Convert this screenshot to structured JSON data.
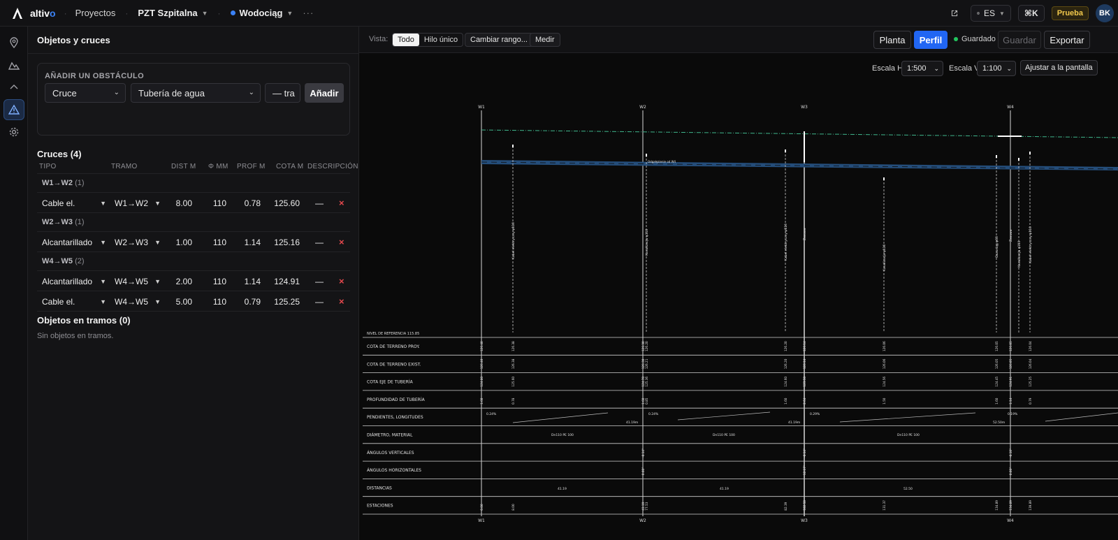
{
  "app": {
    "brand_main": "altiv",
    "brand_accent": "o",
    "nav_projects": "Proyectos",
    "project": "PZT Szpitalna",
    "network": "Wodociąg",
    "more": "···",
    "lang": "ES",
    "shortcut": "⌘K",
    "plan_badge": "Prueba",
    "avatar_initials": "BK"
  },
  "rail": [
    "map-pin-icon",
    "terrain-icon",
    "chevron-up-icon",
    "warning-icon",
    "gear-icon"
  ],
  "panel": {
    "title": "Objetos y cruces",
    "add": {
      "title": "AÑADIR UN OBSTÁCULO",
      "type_value": "Cruce",
      "object_value": "Tubería de agua",
      "segment_value": "— tra",
      "add_label": "Añadir"
    },
    "crossings_title": "Cruces (4)",
    "columns": [
      "TIPO",
      "TRAMO",
      "DIST M",
      "Φ MM",
      "PROF M",
      "COTA M",
      "DESCRIPCIÓN"
    ],
    "groups": [
      {
        "name": "W1→W2",
        "count": "(1)",
        "rows": [
          {
            "type": "Cable el.",
            "segment": "W1→W2",
            "dist": "8.00",
            "dia": "110",
            "depth": "0.78",
            "elev": "125.60",
            "desc": "—"
          }
        ]
      },
      {
        "name": "W2→W3",
        "count": "(1)",
        "rows": [
          {
            "type": "Alcantarillado",
            "segment": "W2→W3",
            "dist": "1.00",
            "dia": "110",
            "depth": "1.14",
            "elev": "125.16",
            "desc": "—"
          }
        ]
      },
      {
        "name": "W4→W5",
        "count": "(2)",
        "rows": [
          {
            "type": "Alcantarillado",
            "segment": "W4→W5",
            "dist": "2.00",
            "dia": "110",
            "depth": "1.14",
            "elev": "124.91",
            "desc": "—"
          },
          {
            "type": "Cable el.",
            "segment": "W4→W5",
            "dist": "5.00",
            "dia": "110",
            "depth": "0.79",
            "elev": "125.25",
            "desc": "—"
          }
        ]
      }
    ],
    "objects_title": "Objetos en tramos (0)",
    "objects_empty": "Sin objetos en tramos."
  },
  "profile_toolbar": {
    "view_label": "Vista:",
    "view_all": "Todo",
    "view_single": "Hilo único",
    "change_range": "Cambiar rango...",
    "measure": "Medir",
    "plan": "Planta",
    "profile": "Perfil",
    "saved": "Guardado",
    "save": "Guardar",
    "export": "Exportar"
  },
  "canvas": {
    "scale_h_label": "Escala H",
    "scale_h": "1:500",
    "scale_v_label": "Escala V",
    "scale_v": "1:100",
    "fit": "Ajustar a la pantalla",
    "wells": [
      "W1",
      "W2",
      "W3",
      "W4"
    ],
    "reference": "NIVEL DE REFERENCIA 115.85",
    "rows": [
      "COTA DE TERRENO PROY.",
      "COTA DE TERRENO EXIST.",
      "COTA EJE DE TUBERÍA",
      "PROFUNDIDAD DE TUBERÍA",
      "PENDIENTES, LONGITUDES",
      "DIÁMETRO, MATERIAL",
      "ÁNGULOS VERTICALES",
      "ÁNGULOS HORIZONTALES",
      "DISTANCIAS",
      "ESTACIONES"
    ],
    "slopes": [
      "0.24%",
      "0.24%",
      "0.29%",
      "0.19%"
    ],
    "lengths": [
      "41.19m",
      "41.19m",
      "52.50m"
    ],
    "materials": [
      "Dn110 PE 100",
      "Dn110 PE 100",
      "Dn110 PE 100"
    ],
    "distances": [
      "41.19",
      "41.19",
      "52.50"
    ],
    "crossing_labels": [
      "Kabel elektryczny φ110",
      "Kanalizacja φ110",
      "Kabel elektryczny φ110",
      "Zasuwa",
      "Kanalizacja φ110",
      "Gazociąg φ63",
      "Zasuwa",
      "Kanalizacja φ110",
      "Kabel elektryczny φ110"
    ],
    "annotation": "Odgałęzienie od W4",
    "stations": [
      "0.00",
      "8.00",
      "41.19",
      "77.53",
      "82.39",
      "102.58",
      "131.37",
      "134.89",
      "134.89",
      "139.89"
    ],
    "cota_proy": [
      "126.40",
      "126.38",
      "126.30",
      "126.20",
      "126.20",
      "126.14",
      "126.06",
      "126.05",
      "126.05",
      "126.04"
    ],
    "cota_exist": [
      "126.40",
      "126.38",
      "126.30",
      "126.21",
      "126.20",
      "126.14",
      "126.06",
      "126.05",
      "126.05",
      "126.04"
    ],
    "cota_eje": [
      "124.80",
      "125.60",
      "124.70",
      "125.36",
      "124.60",
      "123.50",
      "124.56",
      "124.45",
      "124.91",
      "125.25"
    ],
    "depth": [
      "1.60",
      "0.78",
      "1.60",
      "0.85",
      "1.60",
      "2.64",
      "1.50",
      "1.60",
      "1.14",
      "0.79"
    ],
    "vert_angles": [
      "-0.14°",
      "-0.14°",
      "-0.10°"
    ],
    "horiz_angles": [
      "0.00°",
      "12.17°",
      "0.00°"
    ]
  }
}
